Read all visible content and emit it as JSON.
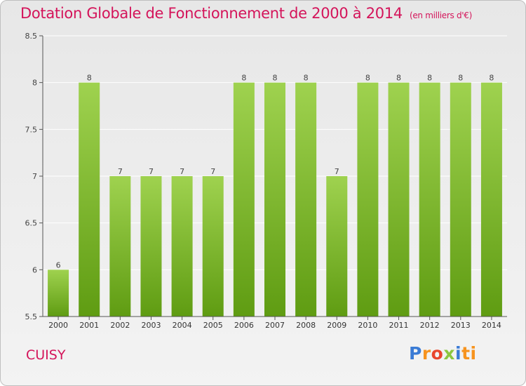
{
  "page": {
    "title": "Dotation Globale de Fonctionnement de 2000 à 2014",
    "unit": "(en milliers d'€)",
    "commune": "CUISY",
    "logo_letters": [
      "P",
      "r",
      "o",
      "x",
      "i",
      "ti"
    ]
  },
  "colors": {
    "title": "#d4145a",
    "bar_top": "#9fd24f",
    "bar_bottom": "#5f9c12",
    "grid": "#ffffff",
    "axis": "#555555"
  },
  "chart_data": {
    "type": "bar",
    "title": "Dotation Globale de Fonctionnement de 2000 à 2014",
    "xlabel": "",
    "ylabel": "",
    "categories": [
      "2000",
      "2001",
      "2002",
      "2003",
      "2004",
      "2005",
      "2006",
      "2007",
      "2008",
      "2009",
      "2010",
      "2011",
      "2012",
      "2013",
      "2014"
    ],
    "values": [
      6,
      8,
      7,
      7,
      7,
      7,
      8,
      8,
      8,
      7,
      8,
      8,
      8,
      8,
      8
    ],
    "data_labels": [
      "6",
      "8",
      "7",
      "7",
      "7",
      "7",
      "8",
      "8",
      "8",
      "7",
      "8",
      "8",
      "8",
      "8",
      "8"
    ],
    "ylim": [
      5.5,
      8.5
    ],
    "yticks": [
      5.5,
      6,
      6.5,
      7,
      7.5,
      8,
      8.5
    ],
    "ytick_labels": [
      "5.5",
      "6",
      "6.5",
      "7",
      "7.5",
      "8",
      "8.5"
    ],
    "grid": true
  }
}
